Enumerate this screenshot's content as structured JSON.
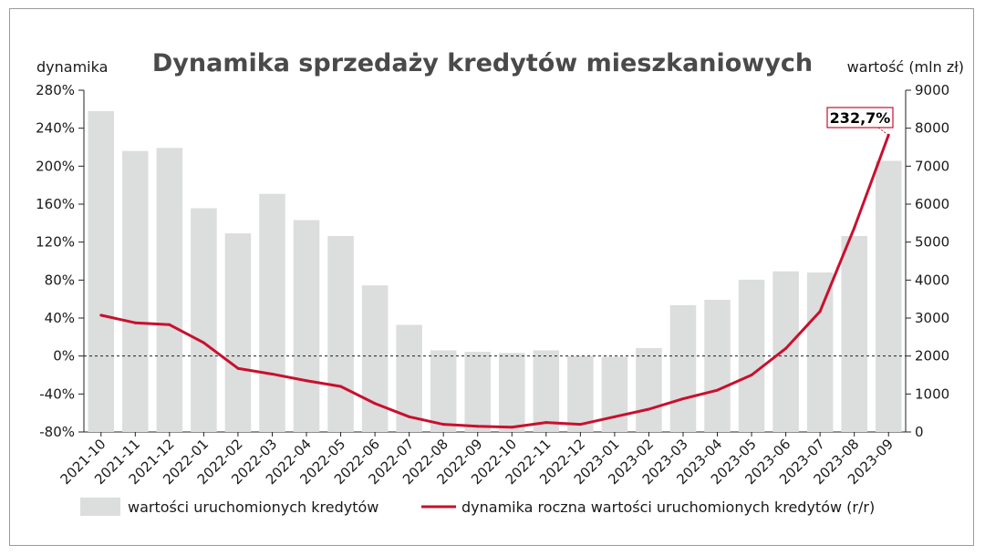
{
  "colors": {
    "bar": "#dcdddd",
    "line": "#c8102e",
    "zero_line": "#222222"
  },
  "chart_data": {
    "type": "bar+line",
    "title": "Dynamika sprzedaży kredytów mieszkaniowych",
    "left_axis_label": "dynamika",
    "right_axis_label": "wartość (mln zł)",
    "left_ylim": [
      -80,
      280
    ],
    "right_ylim": [
      0,
      9000
    ],
    "left_ticks": [
      "280%",
      "240%",
      "200%",
      "160%",
      "120%",
      "80%",
      "40%",
      "0%",
      "-40%",
      "-80%"
    ],
    "right_ticks": [
      "9000",
      "8000",
      "7000",
      "6000",
      "5000",
      "4000",
      "3000",
      "2000",
      "1000",
      "0"
    ],
    "categories": [
      "2021-10",
      "2021-11",
      "2021-12",
      "2022-01",
      "2022-02",
      "2022-03",
      "2022-04",
      "2022-05",
      "2022-06",
      "2022-07",
      "2022-08",
      "2022-09",
      "2022-10",
      "2022-11",
      "2022-12",
      "2023-01",
      "2023-02",
      "2023-03",
      "2023-04",
      "2023-05",
      "2023-06",
      "2023-07",
      "2023-08",
      "2023-09"
    ],
    "series": [
      {
        "name": "wartości uruchomionych kredytów",
        "type": "bar",
        "axis": "right",
        "values": [
          8450,
          7400,
          7480,
          5890,
          5230,
          6270,
          5580,
          5160,
          3860,
          2820,
          2150,
          2110,
          2080,
          2150,
          2000,
          1980,
          2210,
          3340,
          3480,
          4010,
          4230,
          4200,
          5160,
          7140
        ]
      },
      {
        "name": "dynamika roczna wartości uruchomionych kredytów (r/r)",
        "type": "line",
        "axis": "left",
        "values": [
          43,
          35,
          33,
          14,
          -13,
          -19,
          -26,
          -32,
          -50,
          -64,
          -72,
          -74,
          -75,
          -70,
          -72,
          -64,
          -56,
          -45,
          -36,
          -20,
          8,
          47,
          135,
          232.7
        ]
      }
    ],
    "annotation": {
      "label": "232,7%",
      "category": "2023-09"
    },
    "zero_line": "dashed",
    "legend_position": "bottom"
  }
}
